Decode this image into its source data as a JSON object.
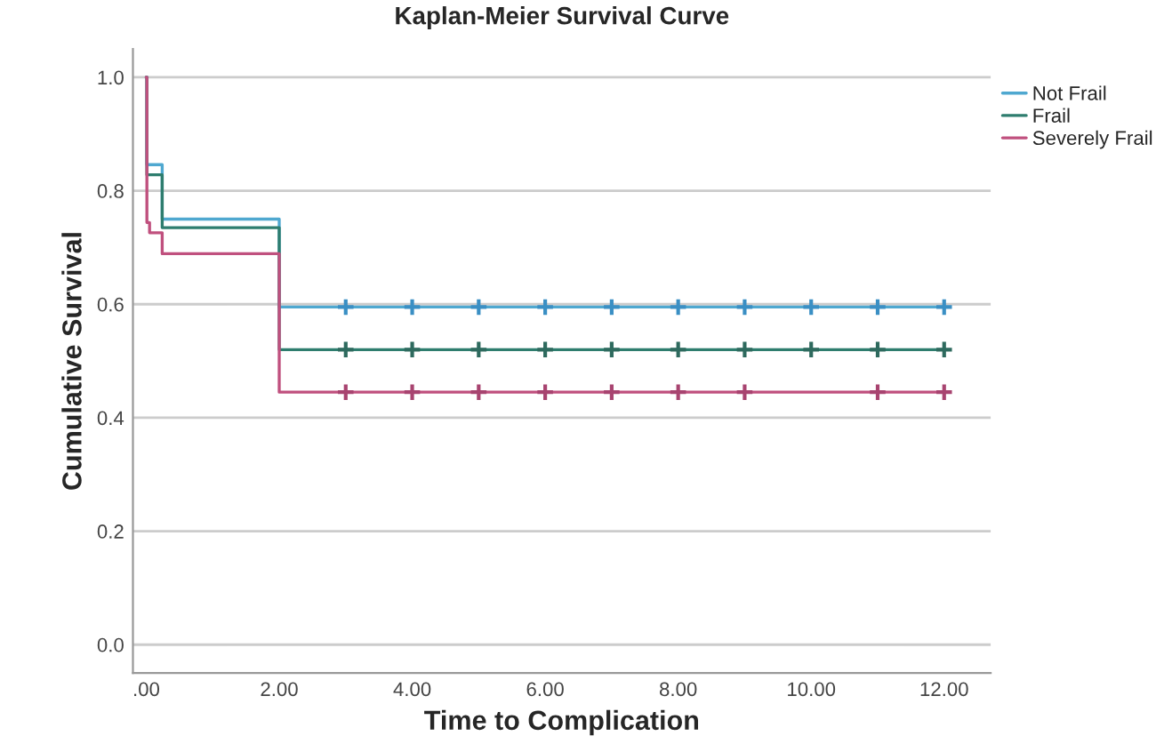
{
  "chart_data": {
    "type": "step",
    "title": "Kaplan-Meier Survival Curve",
    "xlabel": "Time to Complication",
    "ylabel": "Cumulative Survival",
    "series": [
      {
        "name": "Not Frail",
        "color": "#4fa8d0",
        "x": [
          0,
          0.01,
          0.24,
          2.0,
          12
        ],
        "values": [
          1.0,
          0.846,
          0.75,
          0.595,
          0.595
        ]
      },
      {
        "name": "Frail",
        "color": "#2e7d6e",
        "x": [
          0,
          0.01,
          0.24,
          2.0,
          12
        ],
        "values": [
          1.0,
          0.828,
          0.735,
          0.52,
          0.52
        ]
      },
      {
        "name": "Severely Frail",
        "color": "#c0507e",
        "x": [
          0,
          0.01,
          0.05,
          0.24,
          2.0,
          12
        ],
        "values": [
          1.0,
          0.744,
          0.726,
          0.689,
          0.445,
          0.445
        ]
      },
      {
        "type": "scatter",
        "color": "#3a8fc4",
        "marker": "cross",
        "x": [
          3,
          4,
          5,
          6,
          7,
          8,
          9,
          10,
          11,
          12
        ],
        "values": [
          0.595,
          0.595,
          0.595,
          0.595,
          0.595,
          0.595,
          0.595,
          0.595,
          0.595,
          0.595
        ]
      },
      {
        "type": "scatter",
        "color": "#2e6a5e",
        "marker": "cross",
        "x": [
          3,
          4,
          5,
          6,
          7,
          8,
          9,
          10,
          11,
          12
        ],
        "values": [
          0.52,
          0.52,
          0.52,
          0.52,
          0.52,
          0.52,
          0.52,
          0.52,
          0.52,
          0.52
        ]
      },
      {
        "type": "scatter",
        "color": "#a84470",
        "marker": "cross",
        "x": [
          3,
          4,
          5,
          6,
          7,
          8,
          9,
          11,
          12
        ],
        "values": [
          0.445,
          0.445,
          0.445,
          0.445,
          0.445,
          0.445,
          0.445,
          0.445,
          0.445
        ]
      }
    ],
    "xlim": [
      -0.2,
      12.7
    ],
    "ylim": [
      -0.05,
      1.05
    ],
    "xticks": [
      {
        "value": 0,
        "label": ".00"
      },
      {
        "value": 2,
        "label": "2.00"
      },
      {
        "value": 4,
        "label": "4.00"
      },
      {
        "value": 6,
        "label": "6.00"
      },
      {
        "value": 8,
        "label": "8.00"
      },
      {
        "value": 10,
        "label": "10.00"
      },
      {
        "value": 12,
        "label": "12.00"
      }
    ],
    "yticks": [
      {
        "value": 0,
        "label": "0.0"
      },
      {
        "value": 0.2,
        "label": "0.2"
      },
      {
        "value": 0.4,
        "label": "0.4"
      },
      {
        "value": 0.6,
        "label": "0.6"
      },
      {
        "value": 0.8,
        "label": "0.8"
      },
      {
        "value": 1.0,
        "label": "1.0"
      }
    ],
    "grid": "y",
    "legend": "top right"
  }
}
